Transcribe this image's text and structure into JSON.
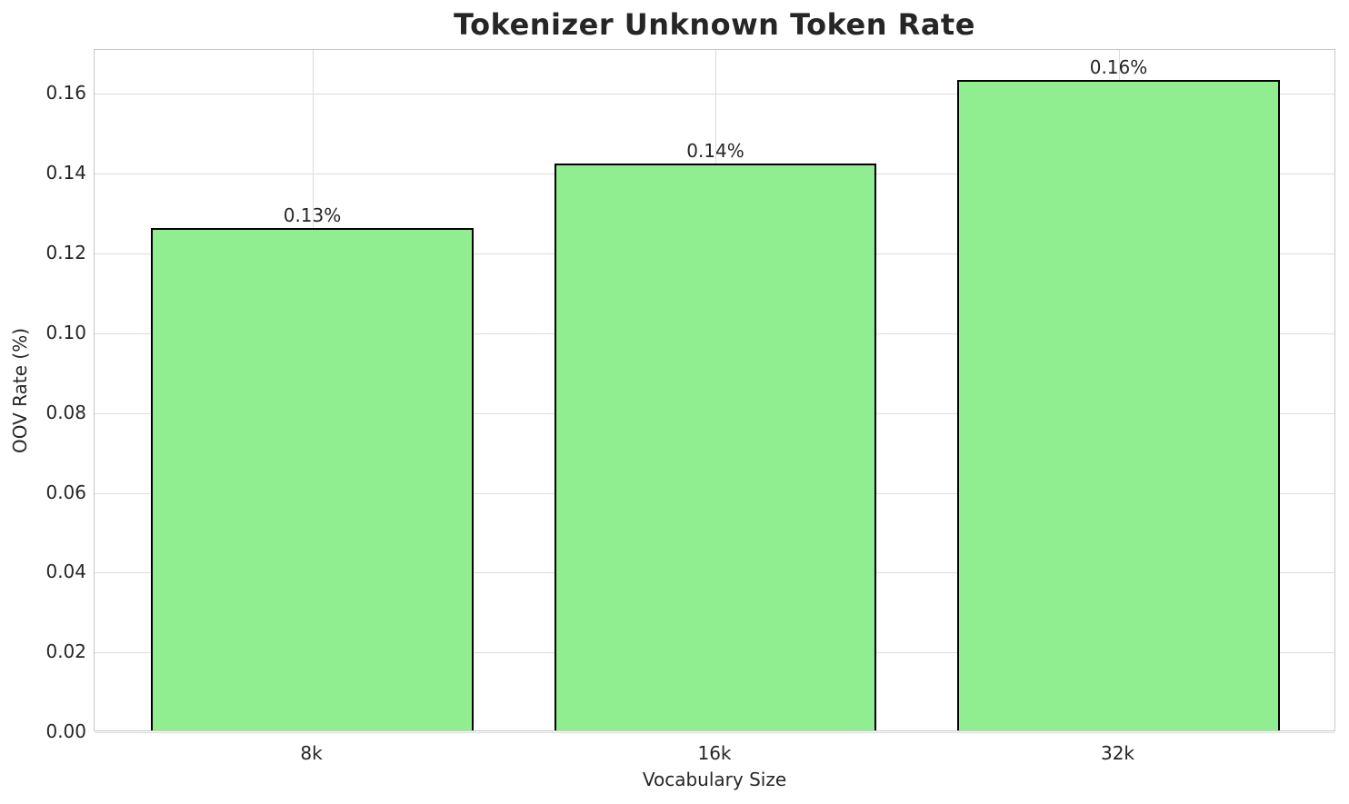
{
  "chart_data": {
    "type": "bar",
    "title": "Tokenizer Unknown Token Rate",
    "xlabel": "Vocabulary Size",
    "ylabel": "OOV Rate (%)",
    "categories": [
      "8k",
      "16k",
      "32k"
    ],
    "values": [
      0.126,
      0.142,
      0.163
    ],
    "bar_labels": [
      "0.13%",
      "0.14%",
      "0.16%"
    ],
    "yticks": [
      0.0,
      0.02,
      0.04,
      0.06,
      0.08,
      0.1,
      0.12,
      0.14,
      0.16
    ],
    "ytick_decimals": 2,
    "ylim": [
      0,
      0.171
    ],
    "xlim": [
      -0.54,
      2.54
    ],
    "bar_width": 0.8,
    "grid": true,
    "grid_axes": "both",
    "legend_visible": false,
    "colors": {
      "bar_fill": "#90EE90",
      "bar_edge": "#000000",
      "grid": "#dcdcdc",
      "spine": "#c8c8c8",
      "text": "#262626",
      "background": "#ffffff"
    }
  }
}
